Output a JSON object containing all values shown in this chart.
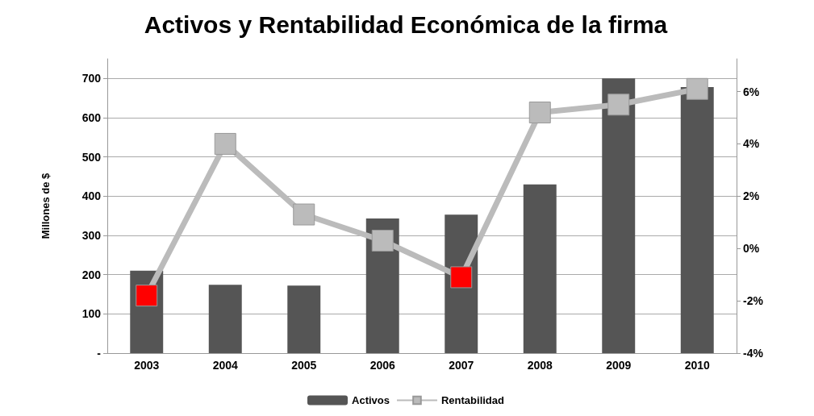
{
  "chart_data": {
    "type": "bar",
    "title": "Activos y Rentabilidad Económica de la firma",
    "ylabel": "Millones de $",
    "categories": [
      "2003",
      "2004",
      "2005",
      "2006",
      "2007",
      "2008",
      "2009",
      "2010"
    ],
    "series": [
      {
        "name": "Activos",
        "color": "#555555",
        "values": [
          210,
          174,
          172,
          343,
          353,
          430,
          700,
          678
        ]
      },
      {
        "name": "Rentabilidad",
        "type": "line",
        "axis": "y2",
        "color": "#bbbbbb",
        "colors": [
          "#ff0000",
          "#bbbbbb",
          "#bbbbbb",
          "#bbbbbb",
          "#ff0000",
          "#bbbbbb",
          "#bbbbbb",
          "#bbbbbb"
        ],
        "marker": "square",
        "values": [
          -1.8,
          4.0,
          1.3,
          0.3,
          -1.1,
          5.2,
          5.5,
          6.1
        ]
      }
    ],
    "ylim": [
      0,
      750
    ],
    "yticks": [
      {
        "value": 0,
        "label": "-"
      },
      100,
      200,
      300,
      400,
      500,
      600,
      700
    ],
    "y2lim": [
      -4,
      7.25
    ],
    "y2ticks": [
      {
        "value": -4,
        "label": "-4%"
      },
      {
        "value": -2,
        "label": "-2%"
      },
      {
        "value": 0,
        "label": "0%"
      },
      {
        "value": 2,
        "label": "2%"
      },
      {
        "value": 4,
        "label": "4%"
      },
      {
        "value": 6,
        "label": "6%"
      }
    ],
    "grid": "y",
    "legend": "bottom"
  }
}
